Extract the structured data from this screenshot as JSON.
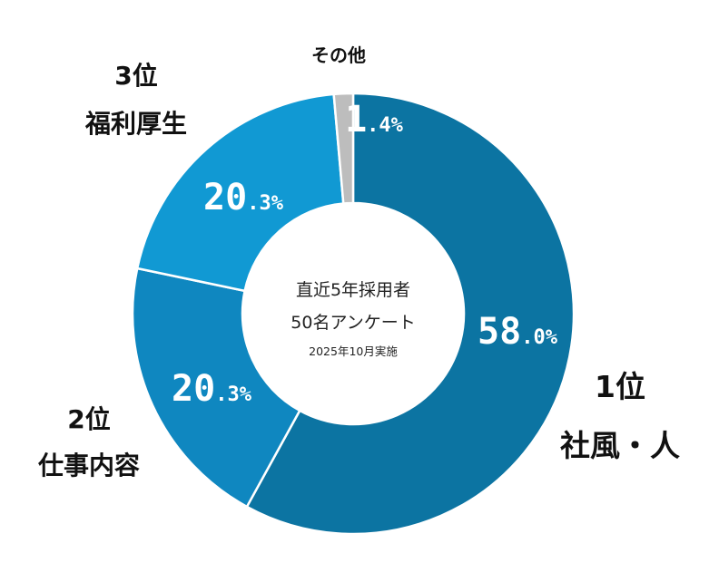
{
  "chart_data": {
    "type": "pie",
    "variant": "donut",
    "categories": [
      "1位 社風・人",
      "2位 仕事内容",
      "3位 福利厚生",
      "その他"
    ],
    "values": [
      58.0,
      20.3,
      20.3,
      1.4
    ],
    "unit": "%",
    "colors": [
      "#0c74a2",
      "#0f87c0",
      "#1199d3",
      "#bdbdbd"
    ],
    "center_text": {
      "line1": "直近5年採用者",
      "line2": "50名アンケート",
      "line3": "2025年10月実施"
    },
    "segment_labels": [
      {
        "rank": "1位",
        "name": "社風・人",
        "value_main": "58",
        "value_suffix": ".0%"
      },
      {
        "rank": "2位",
        "name": "仕事内容",
        "value_main": "20",
        "value_suffix": ".3%"
      },
      {
        "rank": "3位",
        "name": "福利厚生",
        "value_main": "20",
        "value_suffix": ".3%"
      },
      {
        "rank": "",
        "name": "その他",
        "value_main": "1",
        "value_suffix": ".4%"
      }
    ]
  }
}
